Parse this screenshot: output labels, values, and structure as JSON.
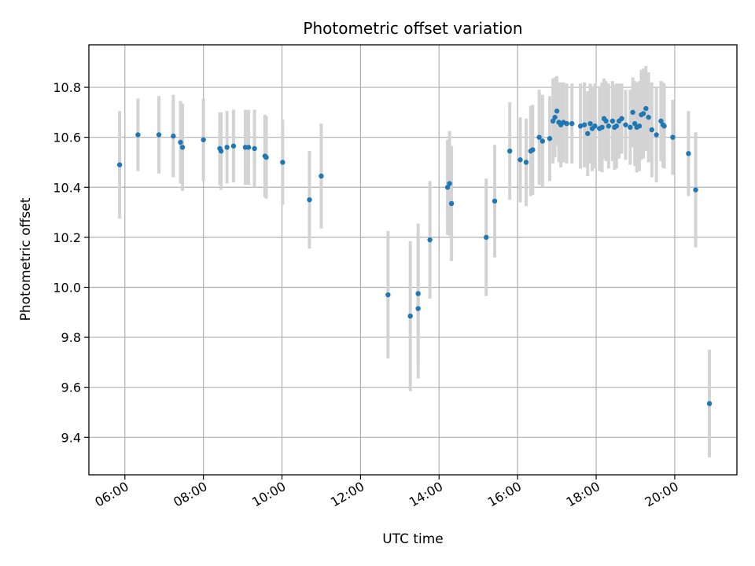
{
  "chart_data": {
    "type": "scatter",
    "title": "Photometric offset variation",
    "xlabel": "UTC time",
    "ylabel": "Photometric offset",
    "x_unit": "hours UTC",
    "xlim": [
      "05:05",
      "21:35"
    ],
    "ylim": [
      9.25,
      10.97
    ],
    "x_ticks": [
      "06:00",
      "08:00",
      "10:00",
      "12:00",
      "14:00",
      "16:00",
      "18:00",
      "20:00"
    ],
    "y_ticks": [
      "9.4",
      "9.6",
      "9.8",
      "10.0",
      "10.2",
      "10.4",
      "10.6",
      "10.8"
    ],
    "grid": true,
    "marker_color": "#1f77b4",
    "errorbar_color": "#d3d3d3",
    "series": [
      {
        "x": [
          "05:52",
          "06:20",
          "06:52",
          "07:14",
          "07:25",
          "07:28",
          "08:00",
          "08:25",
          "08:27",
          "08:36",
          "08:46",
          "09:04",
          "09:09",
          "09:18",
          "09:34",
          "09:36",
          "10:01",
          "10:42",
          "11:00",
          "12:42",
          "13:16",
          "13:28",
          "13:28",
          "13:46",
          "14:13",
          "14:16",
          "14:19",
          "15:12",
          "15:25",
          "15:48",
          "16:04",
          "16:13",
          "16:20",
          "16:23",
          "16:33",
          "16:38",
          "16:49",
          "16:54",
          "16:57",
          "17:00",
          "17:03",
          "17:06",
          "17:10",
          "17:15",
          "17:23",
          "17:36",
          "17:42",
          "17:47",
          "17:51",
          "17:54",
          "17:58",
          "18:05",
          "18:09",
          "18:12",
          "18:15",
          "18:19",
          "18:25",
          "18:28",
          "18:31",
          "18:35",
          "18:39",
          "18:45",
          "18:52",
          "18:56",
          "18:59",
          "19:02",
          "19:06",
          "19:09",
          "19:12",
          "19:16",
          "19:20",
          "19:25",
          "19:32",
          "19:39",
          "19:42",
          "19:44",
          "19:57",
          "20:21",
          "20:32",
          "20:53"
        ],
        "y": [
          10.49,
          10.61,
          10.61,
          10.605,
          10.58,
          10.56,
          10.59,
          10.555,
          10.545,
          10.56,
          10.565,
          10.56,
          10.56,
          10.555,
          10.525,
          10.52,
          10.5,
          10.35,
          10.445,
          9.97,
          9.885,
          9.975,
          9.915,
          10.19,
          10.4,
          10.415,
          10.335,
          10.2,
          10.345,
          10.545,
          10.51,
          10.5,
          10.545,
          10.55,
          10.6,
          10.585,
          10.595,
          10.665,
          10.68,
          10.705,
          10.66,
          10.65,
          10.66,
          10.655,
          10.655,
          10.645,
          10.65,
          10.615,
          10.655,
          10.635,
          10.645,
          10.635,
          10.64,
          10.675,
          10.665,
          10.645,
          10.665,
          10.64,
          10.645,
          10.665,
          10.675,
          10.65,
          10.64,
          10.7,
          10.655,
          10.64,
          10.645,
          10.69,
          10.695,
          10.715,
          10.68,
          10.63,
          10.61,
          10.665,
          10.65,
          10.645,
          10.6,
          10.535,
          10.39,
          9.535
        ],
        "yerr": [
          0.215,
          0.145,
          0.155,
          0.165,
          0.165,
          0.175,
          0.165,
          0.145,
          0.155,
          0.145,
          0.145,
          0.15,
          0.15,
          0.155,
          0.165,
          0.165,
          0.17,
          0.195,
          0.21,
          0.255,
          0.3,
          0.28,
          0.28,
          0.235,
          0.19,
          0.21,
          0.23,
          0.235,
          0.225,
          0.195,
          0.17,
          0.175,
          0.18,
          0.18,
          0.19,
          0.185,
          0.17,
          0.17,
          0.16,
          0.14,
          0.16,
          0.17,
          0.16,
          0.16,
          0.16,
          0.17,
          0.17,
          0.17,
          0.16,
          0.17,
          0.17,
          0.17,
          0.18,
          0.16,
          0.16,
          0.17,
          0.16,
          0.17,
          0.17,
          0.15,
          0.14,
          0.14,
          0.15,
          0.14,
          0.17,
          0.18,
          0.18,
          0.18,
          0.18,
          0.17,
          0.18,
          0.19,
          0.19,
          0.16,
          0.17,
          0.17,
          0.15,
          0.17,
          0.23,
          0.215
        ]
      }
    ]
  }
}
